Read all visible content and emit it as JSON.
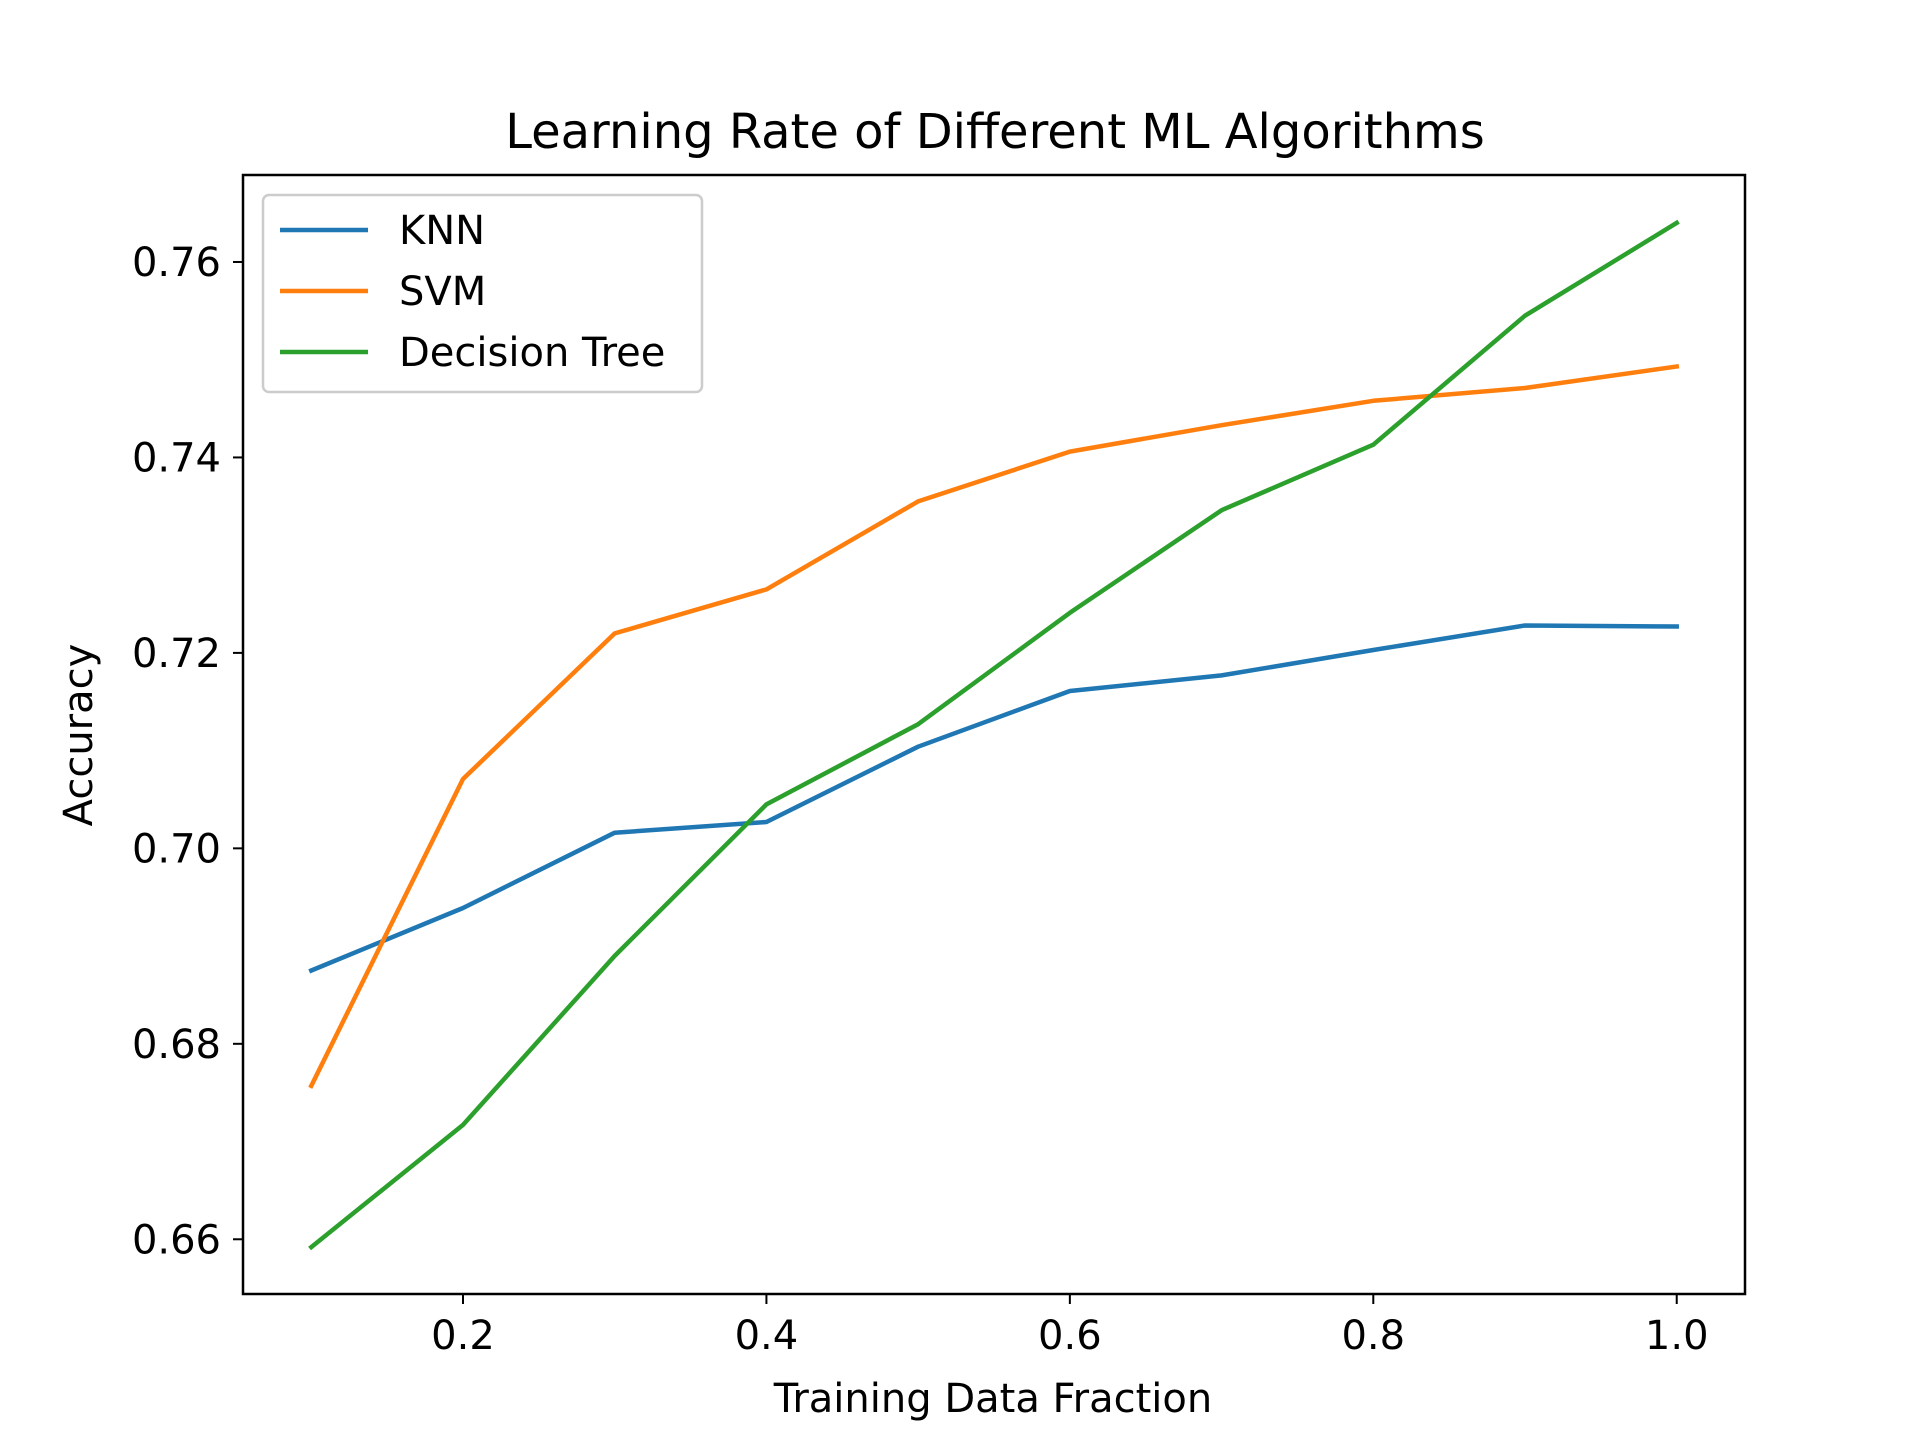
{
  "chart_data": {
    "type": "line",
    "title": "Learning Rate of Different ML Algorithms",
    "xlabel": "Training Data Fraction",
    "ylabel": "Accuracy",
    "x": [
      0.1,
      0.2,
      0.3,
      0.4,
      0.5,
      0.6,
      0.7,
      0.8,
      0.9,
      1.0
    ],
    "xlim": [
      0.055,
      1.045
    ],
    "ylim": [
      0.6544,
      0.7689
    ],
    "xticks": [
      0.2,
      0.4,
      0.6,
      0.8,
      1.0
    ],
    "xtick_labels": [
      "0.2",
      "0.4",
      "0.6",
      "0.8",
      "1.0"
    ],
    "yticks": [
      0.66,
      0.68,
      0.7,
      0.72,
      0.74,
      0.76
    ],
    "ytick_labels": [
      "0.66",
      "0.68",
      "0.70",
      "0.72",
      "0.74",
      "0.76"
    ],
    "grid": false,
    "legend_position": "top-left",
    "series": [
      {
        "name": "KNN",
        "color": "#1f77b4",
        "values": [
          0.6875,
          0.6939,
          0.7016,
          0.7027,
          0.7104,
          0.7161,
          0.7177,
          0.7203,
          0.7228,
          0.7227
        ]
      },
      {
        "name": "SVM",
        "color": "#ff7f0e",
        "values": [
          0.6757,
          0.7071,
          0.722,
          0.7265,
          0.7355,
          0.7406,
          0.7433,
          0.7458,
          0.7471,
          0.7493
        ]
      },
      {
        "name": "Decision Tree",
        "color": "#2ca02c",
        "values": [
          0.6592,
          0.6717,
          0.689,
          0.7045,
          0.7127,
          0.7241,
          0.7346,
          0.7413,
          0.7545,
          0.764
        ]
      }
    ]
  }
}
